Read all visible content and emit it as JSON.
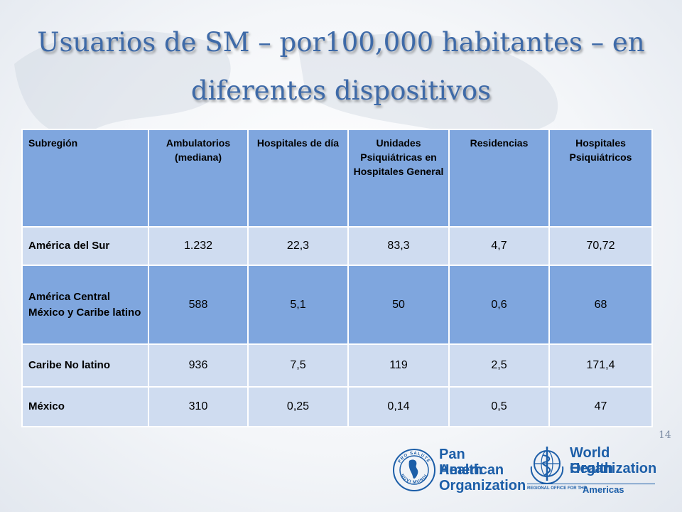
{
  "slide": {
    "title": "Usuarios de SM – por100,000 habitantes – en diferentes dispositivos",
    "page_number": "14"
  },
  "table": {
    "headers": [
      "Subregión",
      "Ambulatorios (mediana)",
      "Hospitales de día",
      "Unidades Psiquiátricas en Hospitales General",
      "Residencias",
      "Hospitales Psiquiátricos"
    ],
    "rows": [
      [
        "América del Sur",
        "1.232",
        "22,3",
        "83,3",
        "4,7",
        "70,72"
      ],
      [
        "América Central México y Caribe latino",
        "588",
        "5,1",
        "50",
        "0,6",
        "68"
      ],
      [
        "Caribe No latino",
        "936",
        "7,5",
        "119",
        "2,5",
        "171,4"
      ],
      [
        "México",
        "310",
        "0,25",
        "0,14",
        "0,5",
        "47"
      ]
    ]
  },
  "logos": {
    "paho": {
      "line1": "Pan American",
      "line2": "Health",
      "line3": "Organization",
      "seal_top": "PRO SALUTE",
      "seal_bottom": "NOVI MUNDI",
      "icon": "paho-seal-icon"
    },
    "who": {
      "line1": "World Health",
      "line2": "Organization",
      "sub_small": "REGIONAL OFFICE FOR THE",
      "sub_big": "Americas",
      "icon": "who-emblem-icon"
    }
  },
  "colors": {
    "title": "#3e6aa8",
    "header_bg": "#7fa6de",
    "row_light": "#cfdcf0",
    "row_dark": "#7fa6de",
    "logo_blue": "#1c5ea8"
  }
}
